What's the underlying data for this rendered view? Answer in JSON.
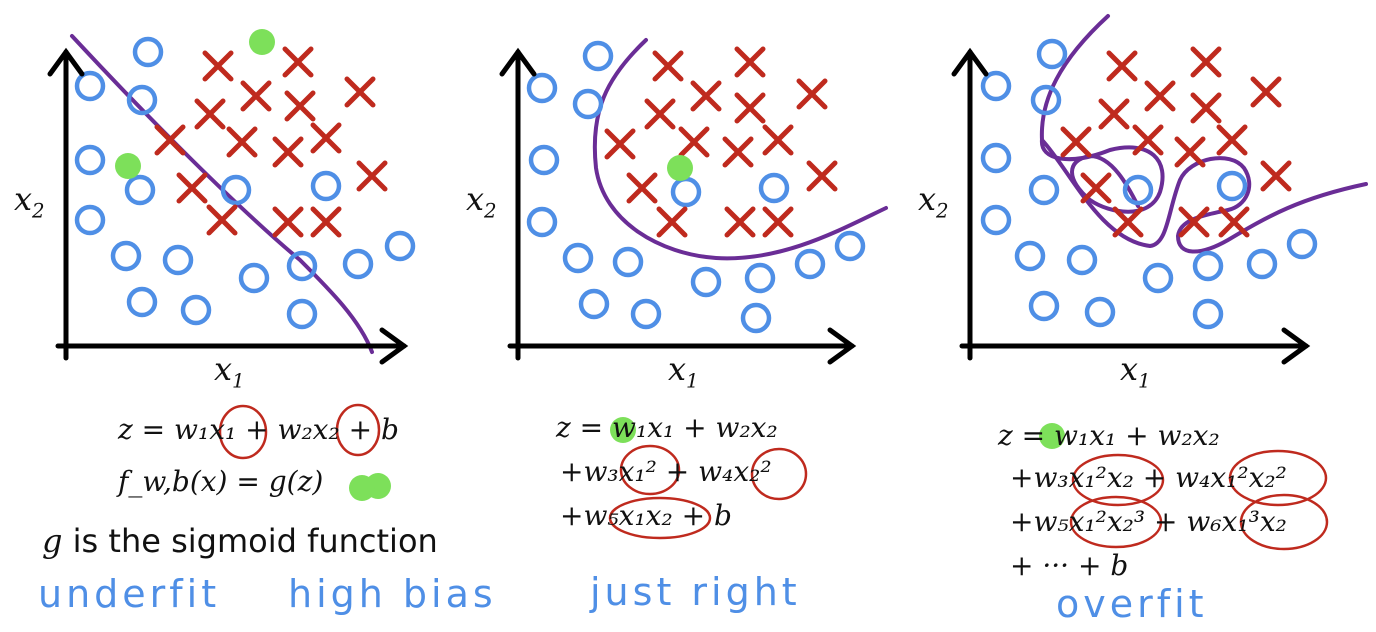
{
  "colors": {
    "axis": "#000000",
    "circle": "#4f8fe6",
    "cross": "#bf2a1e",
    "boundary": "#6a2d96",
    "highlight": "#7de05a",
    "annotation": "#bf2a1e",
    "handwriting": "#4f8fe6"
  },
  "icons": {
    "positive_class": "x-mark-icon",
    "negative_class": "circle-icon"
  },
  "axes": {
    "x_label": "x",
    "x_sub": "1",
    "y_label": "x",
    "y_sub": "2"
  },
  "panel1": {
    "equation_line1": "z = w₁x₁ + w₂x₂ + b",
    "equation_line2": "f_w,b(x) = g(z)",
    "caption": "g is the sigmoid function",
    "caption_var": "g",
    "caption_rest": " is the sigmoid function",
    "label_a": "underfit",
    "label_b": "high bias"
  },
  "panel2": {
    "equation_line1": "z = w₁x₁ + w₂x₂",
    "equation_line2": "+w₃x₁² + w₄x₂²",
    "equation_line3": "+w₅x₁x₂ + b",
    "label": "just right"
  },
  "panel3": {
    "equation_line1": "z = w₁x₁ + w₂x₂",
    "equation_line2": "+w₃x₁²x₂ + w₄x₁²x₂²",
    "equation_line3": "+w₅x₁²x₂³ +  w₆x₁³x₂",
    "equation_line4": "+ ··· + b",
    "label": "overfit"
  }
}
